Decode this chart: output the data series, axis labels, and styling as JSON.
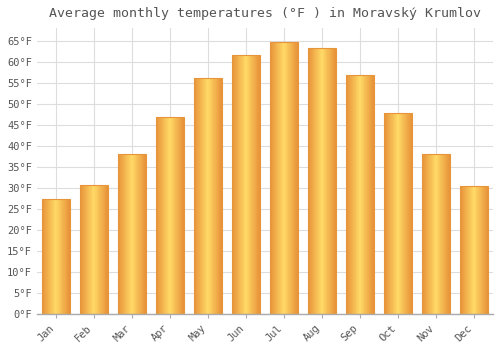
{
  "title": "Average monthly temperatures (°F ) in Moravský Krumlov",
  "months": [
    "Jan",
    "Feb",
    "Mar",
    "Apr",
    "May",
    "Jun",
    "Jul",
    "Aug",
    "Sep",
    "Oct",
    "Nov",
    "Dec"
  ],
  "values": [
    27.3,
    30.7,
    37.9,
    46.9,
    56.0,
    61.7,
    64.6,
    63.3,
    56.8,
    47.8,
    37.9,
    30.5
  ],
  "bar_color_center": "#FFD966",
  "bar_color_edge": "#E8943A",
  "background_color": "#ffffff",
  "grid_color": "#dddddd",
  "text_color": "#555555",
  "ylim": [
    0,
    68
  ],
  "yticks": [
    0,
    5,
    10,
    15,
    20,
    25,
    30,
    35,
    40,
    45,
    50,
    55,
    60,
    65
  ],
  "title_fontsize": 9.5,
  "tick_fontsize": 7.5,
  "bar_width": 0.72
}
